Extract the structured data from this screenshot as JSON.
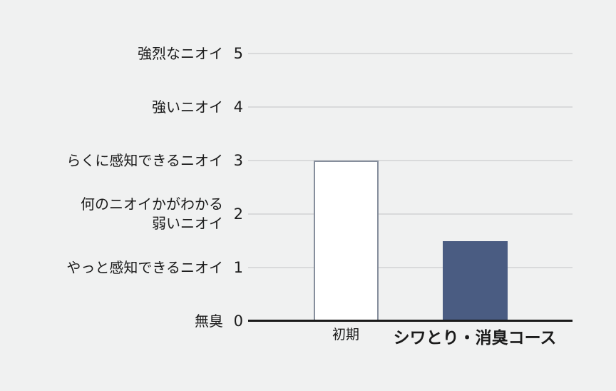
{
  "page": {
    "background_color": "#f0f1f1",
    "text_color": "#1b1b1b"
  },
  "colors": {
    "gridline": "#d9dadb",
    "axis_line": "#1b1b1b",
    "bar_initial_fill": "#ffffff",
    "bar_initial_border": "#868e9c",
    "bar_course_fill": "#4a5c82"
  },
  "chart_data": {
    "type": "bar",
    "title": "",
    "xlabel": "",
    "ylabel": "",
    "categories": [
      "初期",
      "シワとり・消臭コース"
    ],
    "values": [
      3,
      1.5
    ],
    "ylim": [
      0,
      5
    ],
    "grid": true,
    "legend": false,
    "yticks": [
      {
        "value": 0,
        "label_lines": [
          "無臭"
        ]
      },
      {
        "value": 1,
        "label_lines": [
          "やっと感知できるニオイ"
        ]
      },
      {
        "value": 2,
        "label_lines": [
          "何のニオイかがわかる",
          "弱いニオイ"
        ]
      },
      {
        "value": 3,
        "label_lines": [
          "らくに感知できるニオイ"
        ]
      },
      {
        "value": 4,
        "label_lines": [
          "強いニオイ"
        ]
      },
      {
        "value": 5,
        "label_lines": [
          "強烈なニオイ"
        ]
      }
    ],
    "bars": [
      {
        "category": "初期",
        "value": 3,
        "fill": "#ffffff",
        "border": "#868e9c",
        "label_bold": false
      },
      {
        "category": "シワとり・消臭コース",
        "value": 1.5,
        "fill": "#4a5c82",
        "border": null,
        "label_bold": true
      }
    ]
  }
}
